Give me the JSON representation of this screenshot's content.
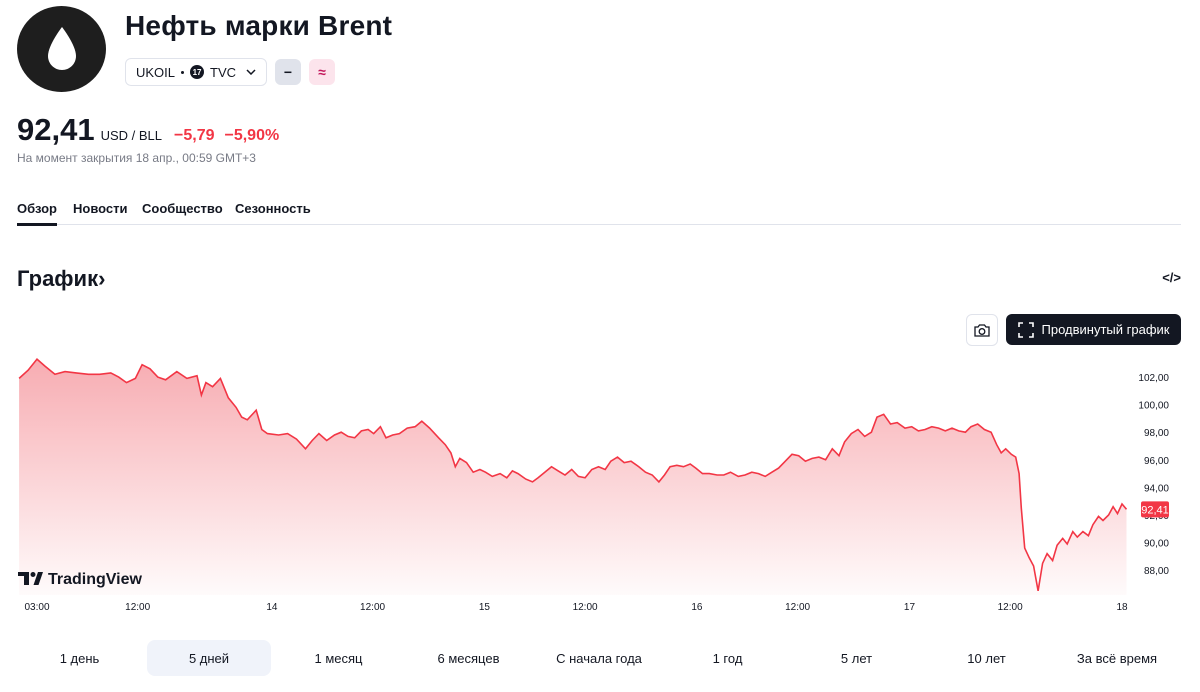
{
  "header": {
    "title": "Нефть марки Brent",
    "symbol": "UKOIL",
    "exchange": "TVC",
    "exchange_logo_text": "17",
    "badge_1": "−",
    "badge_2": "≈"
  },
  "quote": {
    "price": "92,41",
    "unit": "USD / BLL",
    "change": "−5,79",
    "change_pct": "−5,90%",
    "meta": "На момент закрытия 18 апр., 00:59 GMT+3"
  },
  "tabs": [
    {
      "label": "Обзор",
      "active": true
    },
    {
      "label": "Новости"
    },
    {
      "label": "Сообщество"
    },
    {
      "label": "Сезонность"
    }
  ],
  "section": {
    "title": "График",
    "arrow": "›",
    "embed": "</>"
  },
  "toolbar": {
    "advanced_label": "Продвинутый график"
  },
  "watermark": "TradingView",
  "ranges": [
    {
      "label": "1 день"
    },
    {
      "label": "5 дней",
      "active": true
    },
    {
      "label": "1 месяц"
    },
    {
      "label": "6 месяцев"
    },
    {
      "label": "С начала года"
    },
    {
      "label": "1 год"
    },
    {
      "label": "5 лет"
    },
    {
      "label": "10 лет"
    },
    {
      "label": "За всё время"
    }
  ],
  "colors": {
    "line": "#f23645",
    "fill": "#f7a8ae",
    "text": "#131722",
    "muted": "#787b86"
  },
  "chart_data": {
    "type": "area",
    "x_unit": "hours since first tick label 03:00",
    "x_ticks": [
      {
        "t": 0,
        "label": "03:00"
      },
      {
        "t": 9,
        "label": "12:00"
      },
      {
        "t": 21,
        "label": "14"
      },
      {
        "t": 30,
        "label": "12:00"
      },
      {
        "t": 40,
        "label": "15"
      },
      {
        "t": 49,
        "label": "12:00"
      },
      {
        "t": 59,
        "label": "16"
      },
      {
        "t": 68,
        "label": "12:00"
      },
      {
        "t": 78,
        "label": "17"
      },
      {
        "t": 87,
        "label": "12:00"
      },
      {
        "t": 97,
        "label": "18"
      }
    ],
    "y_ticks": [
      "102,00",
      "100,00",
      "98,00",
      "96,00",
      "94,00",
      "92,00",
      "90,00",
      "88,00"
    ],
    "y_tick_values": [
      102,
      100,
      98,
      96,
      94,
      92,
      90,
      88
    ],
    "ylim": [
      86.2,
      103.6
    ],
    "last_value_label": "92,41",
    "last_value": 92.41,
    "series": [
      {
        "points": [
          [
            -1.6,
            101.9
          ],
          [
            -0.8,
            102.5
          ],
          [
            0,
            103.3
          ],
          [
            0.7,
            102.8
          ],
          [
            1.6,
            102.2
          ],
          [
            2.5,
            102.4
          ],
          [
            3.5,
            102.3
          ],
          [
            4.6,
            102.2
          ],
          [
            5.6,
            102.2
          ],
          [
            6.6,
            102.3
          ],
          [
            7.3,
            102.0
          ],
          [
            8.0,
            101.6
          ],
          [
            8.8,
            101.9
          ],
          [
            9.4,
            102.9
          ],
          [
            10.1,
            102.6
          ],
          [
            10.8,
            102.0
          ],
          [
            11.5,
            101.8
          ],
          [
            12.5,
            102.4
          ],
          [
            13.4,
            101.9
          ],
          [
            14.3,
            102.1
          ],
          [
            14.7,
            100.7
          ],
          [
            15.1,
            101.6
          ],
          [
            15.7,
            101.3
          ],
          [
            16.4,
            101.9
          ],
          [
            17.1,
            100.5
          ],
          [
            17.8,
            99.8
          ],
          [
            18.3,
            99.1
          ],
          [
            18.8,
            98.9
          ],
          [
            19.6,
            99.6
          ],
          [
            20.1,
            98.2
          ],
          [
            20.6,
            97.9
          ],
          [
            21.6,
            97.8
          ],
          [
            22.4,
            97.9
          ],
          [
            23.2,
            97.5
          ],
          [
            24.0,
            96.8
          ],
          [
            24.6,
            97.4
          ],
          [
            25.2,
            97.9
          ],
          [
            25.9,
            97.4
          ],
          [
            26.6,
            97.8
          ],
          [
            27.2,
            98.0
          ],
          [
            27.8,
            97.7
          ],
          [
            28.4,
            97.6
          ],
          [
            29.0,
            98.1
          ],
          [
            29.6,
            98.2
          ],
          [
            30.1,
            97.9
          ],
          [
            30.7,
            98.4
          ],
          [
            31.2,
            97.6
          ],
          [
            31.8,
            97.8
          ],
          [
            32.4,
            97.9
          ],
          [
            33.1,
            98.3
          ],
          [
            33.8,
            98.4
          ],
          [
            34.4,
            98.8
          ],
          [
            35.1,
            98.3
          ],
          [
            35.9,
            97.6
          ],
          [
            36.5,
            97.1
          ],
          [
            37.0,
            96.5
          ],
          [
            37.4,
            95.5
          ],
          [
            37.8,
            96.1
          ],
          [
            38.4,
            95.8
          ],
          [
            39.0,
            95.1
          ],
          [
            39.6,
            95.3
          ],
          [
            40.1,
            95.1
          ],
          [
            40.7,
            94.8
          ],
          [
            41.4,
            95.0
          ],
          [
            42.0,
            94.7
          ],
          [
            42.5,
            95.2
          ],
          [
            43.0,
            95.0
          ],
          [
            43.7,
            94.6
          ],
          [
            44.3,
            94.4
          ],
          [
            44.8,
            94.7
          ],
          [
            45.4,
            95.1
          ],
          [
            46.0,
            95.5
          ],
          [
            46.6,
            95.2
          ],
          [
            47.2,
            94.9
          ],
          [
            47.8,
            95.3
          ],
          [
            48.4,
            94.8
          ],
          [
            49.0,
            94.7
          ],
          [
            49.6,
            95.3
          ],
          [
            50.2,
            95.5
          ],
          [
            50.8,
            95.3
          ],
          [
            51.3,
            95.9
          ],
          [
            51.9,
            96.2
          ],
          [
            52.5,
            95.8
          ],
          [
            53.1,
            95.9
          ],
          [
            53.8,
            95.5
          ],
          [
            54.4,
            95.1
          ],
          [
            55.0,
            94.9
          ],
          [
            55.6,
            94.4
          ],
          [
            56.1,
            94.9
          ],
          [
            56.6,
            95.5
          ],
          [
            57.2,
            95.6
          ],
          [
            57.8,
            95.5
          ],
          [
            58.4,
            95.7
          ],
          [
            58.9,
            95.4
          ],
          [
            59.5,
            95.0
          ],
          [
            60.1,
            95.0
          ],
          [
            60.8,
            94.9
          ],
          [
            61.4,
            94.9
          ],
          [
            62.0,
            95.1
          ],
          [
            62.7,
            94.8
          ],
          [
            63.3,
            94.9
          ],
          [
            63.9,
            95.1
          ],
          [
            64.5,
            95.0
          ],
          [
            65.1,
            94.8
          ],
          [
            65.7,
            95.1
          ],
          [
            66.3,
            95.4
          ],
          [
            66.9,
            95.9
          ],
          [
            67.5,
            96.4
          ],
          [
            68.1,
            96.3
          ],
          [
            68.7,
            95.9
          ],
          [
            69.3,
            96.1
          ],
          [
            69.9,
            96.2
          ],
          [
            70.5,
            96.0
          ],
          [
            71.1,
            96.8
          ],
          [
            71.7,
            96.3
          ],
          [
            72.2,
            97.3
          ],
          [
            72.8,
            97.9
          ],
          [
            73.4,
            98.2
          ],
          [
            74.0,
            97.7
          ],
          [
            74.6,
            98.0
          ],
          [
            75.1,
            99.1
          ],
          [
            75.7,
            99.3
          ],
          [
            76.3,
            98.6
          ],
          [
            76.9,
            98.7
          ],
          [
            77.6,
            98.3
          ],
          [
            78.2,
            98.4
          ],
          [
            78.8,
            98.1
          ],
          [
            79.4,
            98.2
          ],
          [
            80.0,
            98.4
          ],
          [
            80.6,
            98.3
          ],
          [
            81.2,
            98.1
          ],
          [
            81.8,
            98.3
          ],
          [
            82.4,
            98.1
          ],
          [
            83.0,
            98.0
          ],
          [
            83.5,
            98.4
          ],
          [
            84.1,
            98.6
          ],
          [
            84.7,
            98.2
          ],
          [
            85.3,
            98.0
          ],
          [
            85.8,
            97.1
          ],
          [
            86.2,
            96.5
          ],
          [
            86.6,
            96.8
          ],
          [
            87.1,
            96.4
          ],
          [
            87.5,
            96.2
          ],
          [
            87.8,
            95.0
          ],
          [
            88.0,
            92.5
          ],
          [
            88.3,
            89.6
          ],
          [
            88.7,
            88.9
          ],
          [
            89.1,
            88.3
          ],
          [
            89.5,
            86.5
          ],
          [
            89.9,
            88.5
          ],
          [
            90.3,
            89.2
          ],
          [
            90.8,
            88.7
          ],
          [
            91.2,
            89.8
          ],
          [
            91.7,
            90.3
          ],
          [
            92.1,
            89.9
          ],
          [
            92.6,
            90.8
          ],
          [
            93.0,
            90.4
          ],
          [
            93.5,
            90.8
          ],
          [
            94.0,
            90.5
          ],
          [
            94.4,
            91.3
          ],
          [
            94.9,
            91.9
          ],
          [
            95.3,
            91.6
          ],
          [
            95.8,
            92.0
          ],
          [
            96.2,
            92.6
          ],
          [
            96.6,
            92.1
          ],
          [
            97.0,
            92.8
          ],
          [
            97.4,
            92.41
          ]
        ]
      }
    ]
  }
}
